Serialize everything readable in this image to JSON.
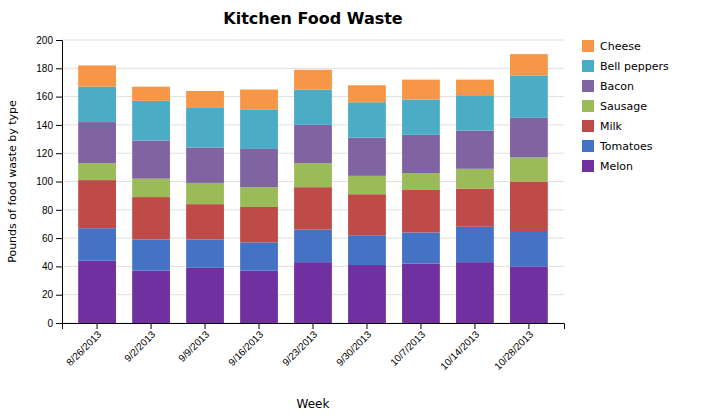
{
  "chart_data": {
    "type": "bar",
    "title": "Kitchen Food Waste",
    "xlabel": "Week",
    "ylabel": "Pounds of food waste by type",
    "categories": [
      "8/26/2013",
      "9/2/2013",
      "9/9/2013",
      "9/16/2013",
      "9/23/2013",
      "9/30/2013",
      "10/7/2013",
      "10/14/2013",
      "10/28/2013"
    ],
    "series": [
      {
        "name": "Melon",
        "color": "#7030A0",
        "values": [
          44,
          37,
          39,
          37,
          43,
          41,
          42,
          43,
          40
        ]
      },
      {
        "name": "Tomatoes",
        "color": "#4472C4",
        "values": [
          23,
          22,
          20,
          20,
          23,
          21,
          22,
          25,
          25
        ]
      },
      {
        "name": "Milk",
        "color": "#BE4B48",
        "values": [
          34,
          30,
          25,
          25,
          30,
          29,
          30,
          27,
          35
        ]
      },
      {
        "name": "Sausage",
        "color": "#9BBB59",
        "values": [
          12,
          13,
          15,
          14,
          17,
          13,
          12,
          14,
          17
        ]
      },
      {
        "name": "Bacon",
        "color": "#8064A2",
        "values": [
          29,
          27,
          25,
          27,
          27,
          27,
          27,
          27,
          28
        ]
      },
      {
        "name": "Bell peppers",
        "color": "#4BACC6",
        "values": [
          25,
          28,
          28,
          28,
          25,
          25,
          25,
          25,
          30
        ]
      },
      {
        "name": "Cheese",
        "color": "#F79646",
        "values": [
          15,
          10,
          12,
          14,
          14,
          12,
          14,
          11,
          15
        ]
      }
    ],
    "ylim": [
      0,
      200
    ],
    "yticks": [
      0,
      20,
      40,
      60,
      80,
      100,
      120,
      140,
      160,
      180,
      200
    ],
    "grid": true,
    "stacked": true,
    "legend": "right"
  }
}
